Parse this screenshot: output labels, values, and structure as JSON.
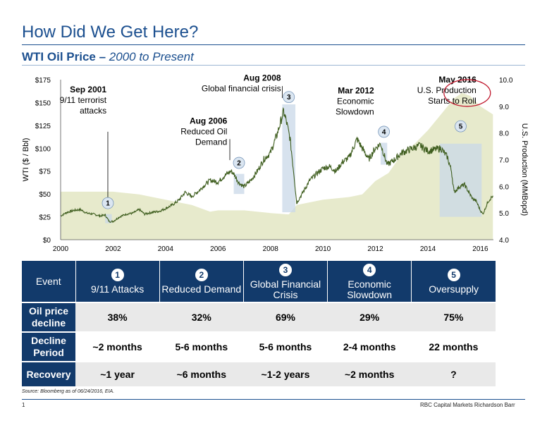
{
  "page": {
    "title": "How Did We Get Here?",
    "subtitle_bold": "WTI Oil Price –",
    "subtitle_light": "2000 to Present",
    "source": "Source:    Bloomberg as of 06/24/2016, EIA.",
    "page_number": "1",
    "brand": "RBC Capital Markets Richardson Barr"
  },
  "chart_data": {
    "type": "line",
    "ylabel": "WTI ($ / Bbl)",
    "y2label": "U.S. Production (MMBopd)",
    "xlim": [
      2000,
      2016.5
    ],
    "ylim": [
      0,
      175
    ],
    "y2lim": [
      4.0,
      10.0
    ],
    "x_ticks": [
      "2000",
      "2002",
      "2004",
      "2006",
      "2008",
      "2010",
      "2012",
      "2014",
      "2016"
    ],
    "y_ticks": [
      "$0",
      "$25",
      "$50",
      "$75",
      "$100",
      "$125",
      "$150",
      "$175"
    ],
    "y2_ticks": [
      "4.0",
      "5.0",
      "6.0",
      "7.0",
      "8.0",
      "9.0",
      "10.0"
    ],
    "series": [
      {
        "kind": "line",
        "color": "#3f5e1f",
        "x": [
          2000.0,
          2000.25,
          2000.5,
          2000.75,
          2001.0,
          2001.25,
          2001.5,
          2001.7,
          2001.85,
          2002.0,
          2002.25,
          2002.5,
          2002.75,
          2003.0,
          2003.2,
          2003.5,
          2003.75,
          2004.0,
          2004.25,
          2004.5,
          2004.75,
          2005.0,
          2005.25,
          2005.5,
          2005.7,
          2006.0,
          2006.25,
          2006.5,
          2006.6,
          2006.8,
          2007.0,
          2007.25,
          2007.5,
          2007.75,
          2008.0,
          2008.25,
          2008.5,
          2008.6,
          2008.75,
          2008.9,
          2009.0,
          2009.2,
          2009.5,
          2009.75,
          2010.0,
          2010.25,
          2010.5,
          2010.75,
          2011.0,
          2011.3,
          2011.5,
          2011.75,
          2012.0,
          2012.2,
          2012.45,
          2012.75,
          2013.0,
          2013.25,
          2013.7,
          2014.0,
          2014.5,
          2014.75,
          2014.9,
          2015.0,
          2015.2,
          2015.4,
          2015.7,
          2015.85,
          2016.0,
          2016.1,
          2016.3,
          2016.48
        ],
        "y": [
          26,
          30,
          32,
          33,
          29,
          28,
          26,
          27,
          20,
          20,
          25,
          28,
          29,
          33,
          28,
          30,
          31,
          34,
          38,
          43,
          52,
          47,
          53,
          60,
          65,
          63,
          70,
          75,
          72,
          62,
          58,
          65,
          75,
          88,
          95,
          115,
          140,
          130,
          110,
          70,
          40,
          50,
          65,
          72,
          78,
          80,
          75,
          85,
          90,
          110,
          100,
          88,
          100,
          105,
          82,
          88,
          95,
          98,
          103,
          97,
          100,
          90,
          75,
          52,
          58,
          60,
          45,
          42,
          32,
          28,
          42,
          48
        ]
      },
      {
        "kind": "area",
        "color": "#e7eacc",
        "x": [
          2000.0,
          2001.0,
          2002.0,
          2003.0,
          2004.0,
          2005.0,
          2005.7,
          2006.0,
          2007.0,
          2008.0,
          2008.7,
          2009.0,
          2010.0,
          2011.0,
          2011.5,
          2012.0,
          2012.5,
          2013.0,
          2013.5,
          2014.0,
          2014.5,
          2015.0,
          2015.3,
          2015.6,
          2016.0,
          2016.48
        ],
        "y": [
          5.8,
          5.8,
          5.8,
          5.7,
          5.5,
          5.3,
          5.05,
          5.1,
          5.1,
          5.0,
          4.95,
          5.3,
          5.5,
          5.6,
          5.7,
          6.2,
          6.5,
          7.2,
          7.6,
          8.1,
          8.7,
          9.3,
          9.5,
          9.4,
          9.0,
          8.7
        ]
      }
    ],
    "shaded_periods": [
      {
        "label": "1",
        "x0": 2001.7,
        "x1": 2001.95,
        "y0": 18,
        "y1": 28
      },
      {
        "label": "2",
        "x0": 2006.6,
        "x1": 2007.0,
        "y0": 50,
        "y1": 72
      },
      {
        "label": "3",
        "x0": 2008.45,
        "x1": 2008.95,
        "y0": 30,
        "y1": 148
      },
      {
        "label": "4",
        "x0": 2012.2,
        "x1": 2012.45,
        "y0": 82,
        "y1": 106
      },
      {
        "label": "5",
        "x0": 2014.45,
        "x1": 2016.05,
        "y0": 25,
        "y1": 105
      }
    ],
    "annotations": [
      {
        "title": "Sep 2001",
        "text": [
          "9/11 terrorist",
          "attacks"
        ],
        "align": "end",
        "x": 2001.75,
        "y": 161
      },
      {
        "title": "Aug 2006",
        "text": [
          "Reduced Oil",
          "Demand"
        ],
        "align": "end",
        "x": 2006.35,
        "y": 127
      },
      {
        "title": "Aug 2008",
        "text": [
          "Global financial crisis"
        ],
        "align": "end",
        "x": 2008.4,
        "y": 174
      },
      {
        "title": "Mar 2012",
        "text": [
          "Economic",
          "Slowdown"
        ],
        "align": "end",
        "x": 2011.95,
        "y": 160
      },
      {
        "title": "May 2016",
        "text": [
          "U.S. Production",
          "Starts to Roll"
        ],
        "align": "end",
        "x": 2015.85,
        "y": 172
      }
    ]
  },
  "table": {
    "event_header": "Event",
    "columns": [
      {
        "num": "1",
        "label": "9/11 Attacks"
      },
      {
        "num": "2",
        "label": "Reduced Demand"
      },
      {
        "num": "3",
        "label": "Global Financial Crisis"
      },
      {
        "num": "4",
        "label": "Economic Slowdown"
      },
      {
        "num": "5",
        "label": "Oversupply"
      }
    ],
    "rows": [
      {
        "label": "Oil price decline",
        "values": [
          "38%",
          "32%",
          "69%",
          "29%",
          "75%"
        ]
      },
      {
        "label": "Decline Period",
        "values": [
          "~2 months",
          "5-6 months",
          "5-6 months",
          "2-4 months",
          "22 months"
        ]
      },
      {
        "label": "Recovery",
        "values": [
          "~1 year",
          "~6 months",
          "~1-2 years",
          "~2 months",
          "?"
        ]
      }
    ]
  }
}
